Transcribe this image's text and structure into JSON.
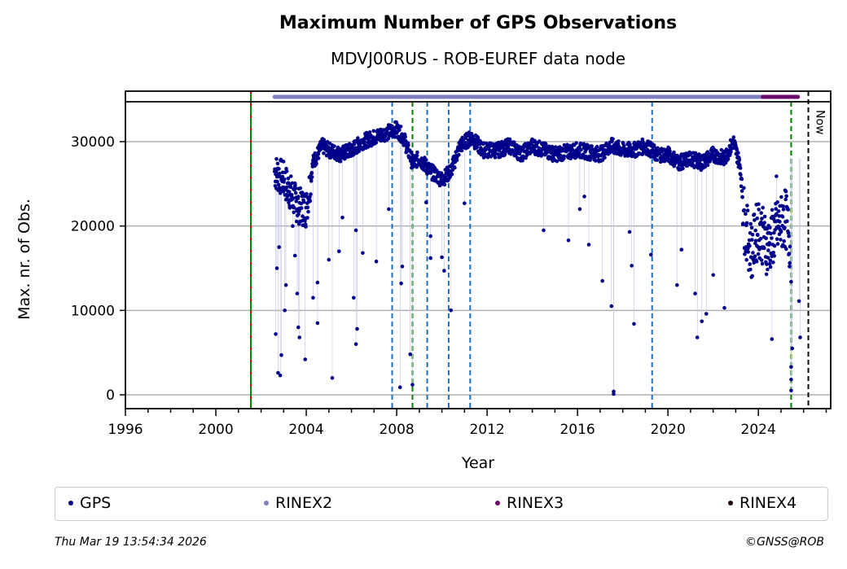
{
  "chart_data": {
    "type": "scatter",
    "title": "Maximum Number of GPS Observations",
    "subtitle": "MDVJ00RUS - ROB-EUREF data node",
    "xlabel": "Year",
    "ylabel": "Max. nr. of Obs.",
    "xlim": [
      1996,
      2027.2
    ],
    "ylim": [
      -1700,
      35000
    ],
    "x_ticks": [
      "1996",
      "2000",
      "2004",
      "2008",
      "2012",
      "2016",
      "2020",
      "2024"
    ],
    "y_ticks": [
      "0",
      "10000",
      "20000",
      "30000"
    ],
    "grid": "horizontal",
    "now_label": "Now",
    "now_year": 2026.21,
    "vertical_lines": [
      {
        "year": 2001.55,
        "color": "#008000",
        "style": "solid-red-dashed"
      },
      {
        "year": 2007.8,
        "color": "#1f6fbf",
        "style": "dashed"
      },
      {
        "year": 2008.7,
        "color": "#008000",
        "style": "dashed"
      },
      {
        "year": 2009.35,
        "color": "#1f6fbf",
        "style": "dashed"
      },
      {
        "year": 2010.3,
        "color": "#1f6fbf",
        "style": "dashed"
      },
      {
        "year": 2011.25,
        "color": "#1f6fbf",
        "style": "dashed"
      },
      {
        "year": 2019.3,
        "color": "#1f6fbf",
        "style": "dashed"
      },
      {
        "year": 2025.45,
        "color": "#008000",
        "style": "dashed"
      }
    ],
    "rinex_strip": [
      {
        "name": "RINEX2",
        "start": 2002.6,
        "end": 2024.2,
        "color": "#7f7fbf"
      },
      {
        "name": "RINEX3",
        "start": 2024.2,
        "end": 2025.45,
        "color": "#6a0a6a"
      },
      {
        "name": "RINEX3",
        "start": 2025.5,
        "end": 2025.75,
        "color": "#6a0a6a"
      }
    ],
    "series": [
      {
        "name": "GPS",
        "color": "#00008b",
        "trend": [
          [
            2002.6,
            26500
          ],
          [
            2003.0,
            25500
          ],
          [
            2003.3,
            24000
          ],
          [
            2003.6,
            22500
          ],
          [
            2004.0,
            22000
          ],
          [
            2004.3,
            27500
          ],
          [
            2004.7,
            29500
          ],
          [
            2005.0,
            29000
          ],
          [
            2005.5,
            28500
          ],
          [
            2006.0,
            29000
          ],
          [
            2006.5,
            30000
          ],
          [
            2007.0,
            30500
          ],
          [
            2007.5,
            31000
          ],
          [
            2008.0,
            31500
          ],
          [
            2008.3,
            30500
          ],
          [
            2008.7,
            27500
          ],
          [
            2009.0,
            28000
          ],
          [
            2009.5,
            26500
          ],
          [
            2010.0,
            25500
          ],
          [
            2010.4,
            26500
          ],
          [
            2010.8,
            29500
          ],
          [
            2011.3,
            30500
          ],
          [
            2011.8,
            29000
          ],
          [
            2012.5,
            29000
          ],
          [
            2013.0,
            29500
          ],
          [
            2013.5,
            28500
          ],
          [
            2014.0,
            29500
          ],
          [
            2015.0,
            28500
          ],
          [
            2016.0,
            29000
          ],
          [
            2017.0,
            28500
          ],
          [
            2017.5,
            29500
          ],
          [
            2018.0,
            29000
          ],
          [
            2018.5,
            29000
          ],
          [
            2019.0,
            29500
          ],
          [
            2019.5,
            28500
          ],
          [
            2020.0,
            28500
          ],
          [
            2020.5,
            27500
          ],
          [
            2021.0,
            28000
          ],
          [
            2021.5,
            27500
          ],
          [
            2022.0,
            28500
          ],
          [
            2022.5,
            28000
          ],
          [
            2022.9,
            30000
          ],
          [
            2023.2,
            27000
          ],
          [
            2023.4,
            20000
          ],
          [
            2023.7,
            17000
          ],
          [
            2024.0,
            20000
          ],
          [
            2024.4,
            17500
          ],
          [
            2024.8,
            19500
          ],
          [
            2025.2,
            21000
          ],
          [
            2025.4,
            18000
          ]
        ],
        "outliers": [
          [
            2002.65,
            7200
          ],
          [
            2002.75,
            2600
          ],
          [
            2002.85,
            2300
          ],
          [
            2002.9,
            4700
          ],
          [
            2003.05,
            10000
          ],
          [
            2002.7,
            15000
          ],
          [
            2002.8,
            17500
          ],
          [
            2003.1,
            13000
          ],
          [
            2003.4,
            20000
          ],
          [
            2003.6,
            12000
          ],
          [
            2003.5,
            16500
          ],
          [
            2003.65,
            8000
          ],
          [
            2003.7,
            6800
          ],
          [
            2003.95,
            4200
          ],
          [
            2004.3,
            11500
          ],
          [
            2004.5,
            13300
          ],
          [
            2004.5,
            8500
          ],
          [
            2005.15,
            2000
          ],
          [
            2005.0,
            16000
          ],
          [
            2005.45,
            17000
          ],
          [
            2005.6,
            21000
          ],
          [
            2006.1,
            11500
          ],
          [
            2006.2,
            6000
          ],
          [
            2006.25,
            7800
          ],
          [
            2006.5,
            16800
          ],
          [
            2006.2,
            19500
          ],
          [
            2007.1,
            15800
          ],
          [
            2007.65,
            22000
          ],
          [
            2008.2,
            13200
          ],
          [
            2008.25,
            15200
          ],
          [
            2008.15,
            900
          ],
          [
            2008.6,
            4800
          ],
          [
            2008.7,
            1200
          ],
          [
            2009.3,
            22800
          ],
          [
            2009.5,
            18800
          ],
          [
            2009.5,
            16200
          ],
          [
            2010.1,
            14700
          ],
          [
            2010.0,
            16300
          ],
          [
            2010.4,
            10000
          ],
          [
            2011.0,
            22700
          ],
          [
            2014.5,
            19500
          ],
          [
            2015.6,
            18300
          ],
          [
            2016.5,
            17800
          ],
          [
            2016.1,
            22000
          ],
          [
            2016.3,
            23500
          ],
          [
            2017.1,
            13500
          ],
          [
            2017.5,
            10500
          ],
          [
            2017.6,
            400
          ],
          [
            2017.6,
            100
          ],
          [
            2018.3,
            19300
          ],
          [
            2018.4,
            15300
          ],
          [
            2018.5,
            8400
          ],
          [
            2019.25,
            16600
          ],
          [
            2020.4,
            13000
          ],
          [
            2020.6,
            17200
          ],
          [
            2021.2,
            12000
          ],
          [
            2021.3,
            6800
          ],
          [
            2021.7,
            9600
          ],
          [
            2021.5,
            8700
          ],
          [
            2022.5,
            10300
          ],
          [
            2022.0,
            14200
          ],
          [
            2024.6,
            6600
          ],
          [
            2025.45,
            1800
          ],
          [
            2025.45,
            500
          ],
          [
            2025.45,
            3300
          ],
          [
            2025.5,
            5500
          ],
          [
            2025.8,
            11100
          ],
          [
            2025.85,
            6800
          ],
          [
            2025.45,
            13400
          ],
          [
            2024.8,
            25900
          ]
        ]
      },
      {
        "name": "RINEX2",
        "color": "#7f7fbf"
      },
      {
        "name": "RINEX3",
        "color": "#6a0a6a"
      },
      {
        "name": "RINEX4",
        "color": "#1a0010"
      }
    ]
  },
  "legend": {
    "items": [
      {
        "label": "GPS",
        "color": "#00008b"
      },
      {
        "label": "RINEX2",
        "color": "#7f7fbf"
      },
      {
        "label": "RINEX3",
        "color": "#6a0a6a"
      },
      {
        "label": "RINEX4",
        "color": "#1a0010"
      }
    ]
  },
  "footer": {
    "timestamp": "Thu Mar 19 13:54:34 2026",
    "copyright": "©GNSS@ROB"
  }
}
